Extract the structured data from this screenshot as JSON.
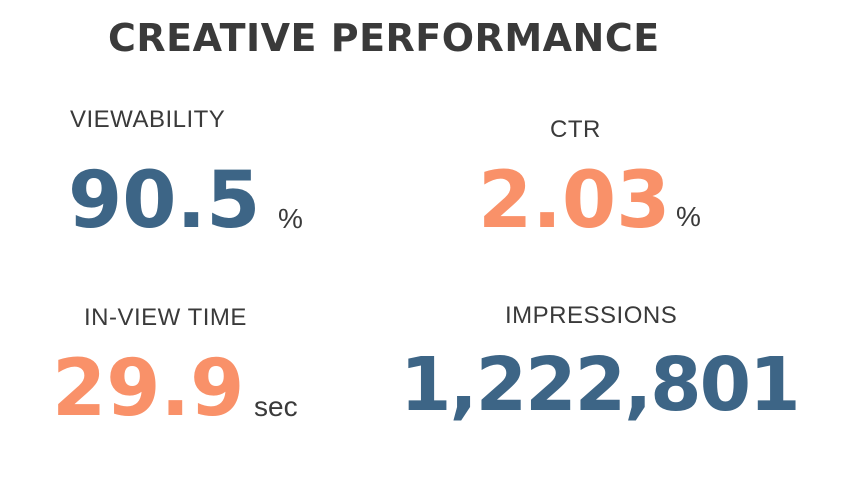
{
  "title": "CREATIVE PERFORMANCE",
  "colors": {
    "blue": "#3d6586",
    "orange": "#f99169",
    "text": "#3a3a3a"
  },
  "metrics": {
    "viewability": {
      "label": "VIEWABILITY",
      "value": "90.5",
      "unit": "%"
    },
    "ctr": {
      "label": "CTR",
      "value": "2.03",
      "unit": "%"
    },
    "in_view_time": {
      "label": "IN-VIEW TIME",
      "value": "29.9",
      "unit": "sec"
    },
    "impressions": {
      "label": "IMPRESSIONS",
      "value": "1,222,801"
    }
  }
}
